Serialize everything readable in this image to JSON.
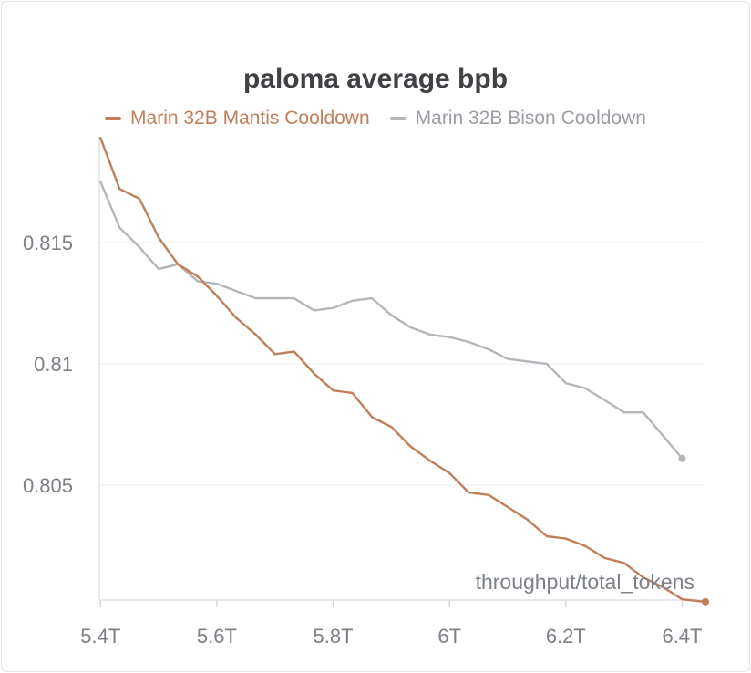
{
  "chart_data": {
    "type": "line",
    "title": "paloma average bpb",
    "xlabel": "throughput/total_tokens",
    "ylabel": "",
    "x_tick_labels": [
      "5.4T",
      "5.6T",
      "5.8T",
      "6T",
      "6.2T",
      "6.4T"
    ],
    "x_ticks": [
      5.4,
      5.6,
      5.8,
      6.0,
      6.2,
      6.4
    ],
    "y_tick_labels": [
      "0.815",
      "0.81",
      "0.805"
    ],
    "y_ticks": [
      0.815,
      0.81,
      0.805
    ],
    "xlim": [
      5.398,
      6.44
    ],
    "ylim": [
      0.80027,
      0.81935
    ],
    "grid": true,
    "legend_position": "top",
    "series": [
      {
        "name": "Marin 32B Mantis Cooldown",
        "color": "#c07f5a",
        "x": [
          5.4,
          5.433,
          5.467,
          5.5,
          5.533,
          5.567,
          5.6,
          5.633,
          5.667,
          5.7,
          5.733,
          5.767,
          5.8,
          5.833,
          5.867,
          5.9,
          5.933,
          5.967,
          6.0,
          6.033,
          6.067,
          6.1,
          6.133,
          6.167,
          6.2,
          6.233,
          6.267,
          6.3,
          6.333,
          6.367,
          6.4,
          6.44
        ],
        "y": [
          0.8193,
          0.8172,
          0.8168,
          0.8152,
          0.8141,
          0.8136,
          0.8128,
          0.8119,
          0.8112,
          0.8104,
          0.8105,
          0.8096,
          0.8089,
          0.8088,
          0.8078,
          0.8074,
          0.8066,
          0.806,
          0.8055,
          0.8047,
          0.8046,
          0.8041,
          0.8036,
          0.8029,
          0.8028,
          0.8025,
          0.802,
          0.8018,
          0.8012,
          0.8008,
          0.8003,
          0.8002
        ],
        "end_marker": true
      },
      {
        "name": "Marin 32B Bison Cooldown",
        "color": "#b3b7bb",
        "x": [
          5.4,
          5.433,
          5.467,
          5.5,
          5.533,
          5.567,
          5.6,
          5.633,
          5.667,
          5.7,
          5.733,
          5.767,
          5.8,
          5.833,
          5.867,
          5.9,
          5.933,
          5.967,
          6.0,
          6.033,
          6.067,
          6.1,
          6.133,
          6.167,
          6.2,
          6.233,
          6.267,
          6.3,
          6.333,
          6.4
        ],
        "y": [
          0.8175,
          0.8156,
          0.8148,
          0.8139,
          0.8141,
          0.8134,
          0.8133,
          0.813,
          0.8127,
          0.8127,
          0.8127,
          0.8122,
          0.8123,
          0.8126,
          0.8127,
          0.812,
          0.8115,
          0.8112,
          0.8111,
          0.8109,
          0.8106,
          0.8102,
          0.8101,
          0.81,
          0.8092,
          0.809,
          0.8085,
          0.808,
          0.808,
          0.8061
        ],
        "end_marker": true
      }
    ]
  }
}
